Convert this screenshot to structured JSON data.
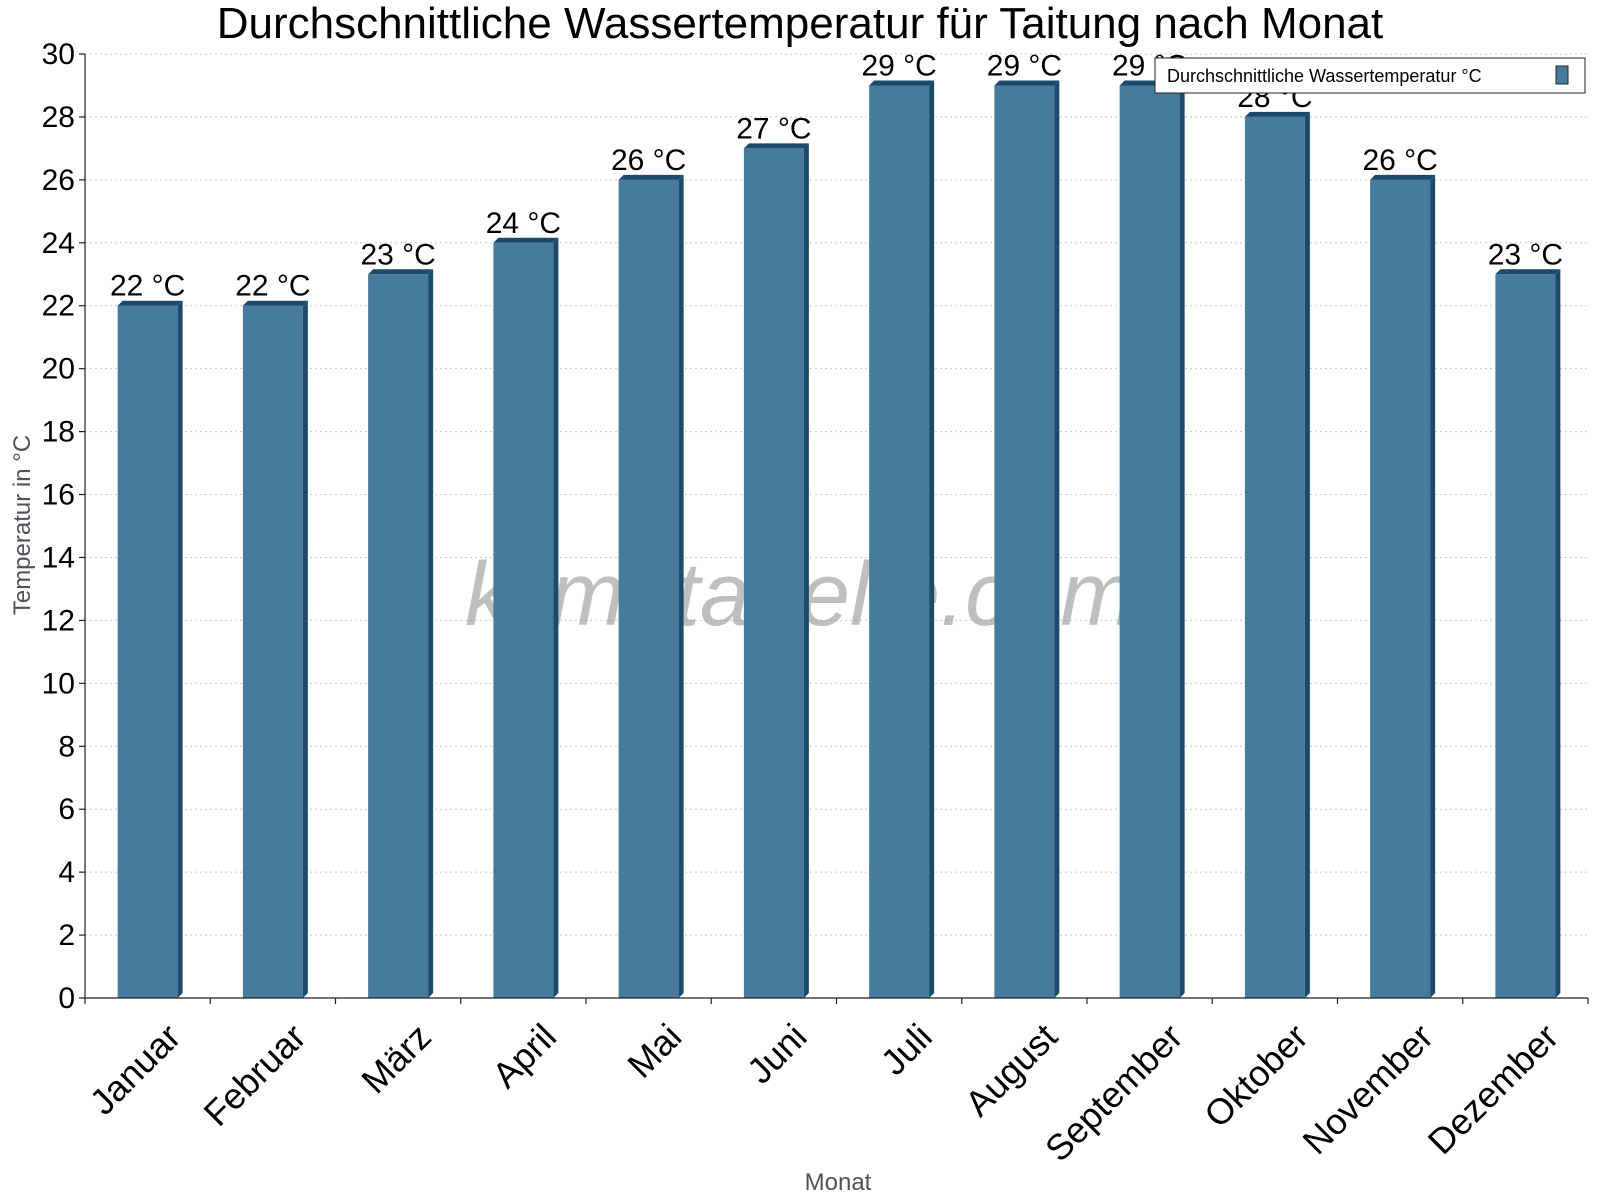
{
  "colors": {
    "bar_front": "#467b9d",
    "bar_side": "#1c4a6a",
    "bar_top": "#1c4a6a"
  },
  "watermark": "klimatabelle.com",
  "chart_data": {
    "type": "bar",
    "title": "Durchschnittliche Wassertemperatur für Taitung nach Monat",
    "xlabel": "Monat",
    "ylabel": "Temperatur in °C",
    "ylim": [
      0,
      30
    ],
    "yticks": [
      0,
      2,
      4,
      6,
      8,
      10,
      12,
      14,
      16,
      18,
      20,
      22,
      24,
      26,
      28,
      30
    ],
    "grid": true,
    "legend_position": "top-right",
    "categories": [
      "Januar",
      "Februar",
      "März",
      "April",
      "Mai",
      "Juni",
      "Juli",
      "August",
      "September",
      "Oktober",
      "November",
      "Dezember"
    ],
    "series": [
      {
        "name": "Durchschnittliche Wassertemperatur °C",
        "values": [
          22,
          22,
          23,
          24,
          26,
          27,
          29,
          29,
          29,
          28,
          26,
          23
        ],
        "labels": [
          "22 °C",
          "22 °C",
          "23 °C",
          "24 °C",
          "26 °C",
          "27 °C",
          "29 °C",
          "29 °C",
          "29 °C",
          "28 °C",
          "26 °C",
          "23 °C"
        ]
      }
    ]
  }
}
